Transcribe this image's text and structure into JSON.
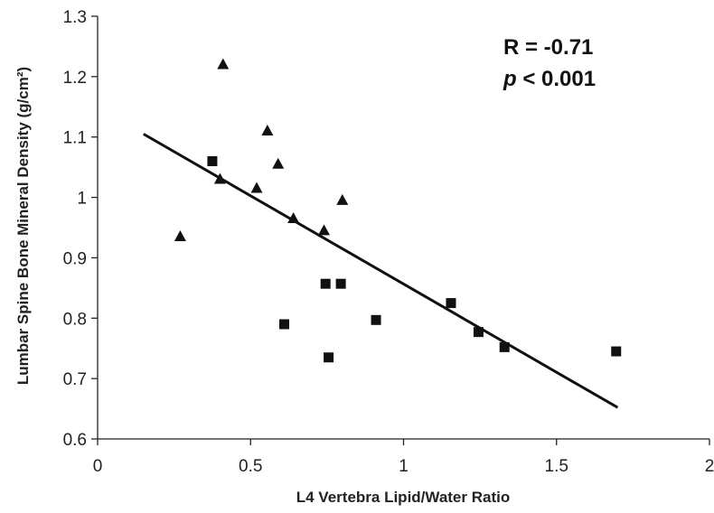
{
  "chart_data": {
    "type": "scatter",
    "title": "",
    "xlabel": "L4 Vertebra Lipid/Water Ratio",
    "ylabel": "Lumbar Spine Bone Mineral Density (g/cm²)",
    "xlim": [
      0,
      2
    ],
    "ylim": [
      0.6,
      1.3
    ],
    "x_ticks": [
      0,
      0.5,
      1,
      1.5,
      2
    ],
    "x_tick_labels": [
      "0",
      "0.5",
      "1",
      "1.5",
      "2"
    ],
    "y_ticks": [
      0.6,
      0.7,
      0.8,
      0.9,
      1.0,
      1.1,
      1.2,
      1.3
    ],
    "y_tick_labels": [
      "0.6",
      "0.7",
      "0.8",
      "0.9",
      "1",
      "1.1",
      "1.2",
      "1.3"
    ],
    "grid": false,
    "legend": "none",
    "series": [
      {
        "marker": "triangle",
        "color": "#111111",
        "points": [
          {
            "x": 0.27,
            "y": 0.935
          },
          {
            "x": 0.4,
            "y": 1.03
          },
          {
            "x": 0.41,
            "y": 1.22
          },
          {
            "x": 0.52,
            "y": 1.015
          },
          {
            "x": 0.555,
            "y": 1.11
          },
          {
            "x": 0.59,
            "y": 1.055
          },
          {
            "x": 0.64,
            "y": 0.965
          },
          {
            "x": 0.74,
            "y": 0.945
          },
          {
            "x": 0.8,
            "y": 0.995
          }
        ]
      },
      {
        "marker": "square",
        "color": "#111111",
        "points": [
          {
            "x": 0.375,
            "y": 1.06
          },
          {
            "x": 0.61,
            "y": 0.79
          },
          {
            "x": 0.745,
            "y": 0.857
          },
          {
            "x": 0.755,
            "y": 0.735
          },
          {
            "x": 0.795,
            "y": 0.857
          },
          {
            "x": 0.91,
            "y": 0.797
          },
          {
            "x": 1.155,
            "y": 0.825
          },
          {
            "x": 1.245,
            "y": 0.777
          },
          {
            "x": 1.33,
            "y": 0.752
          },
          {
            "x": 1.695,
            "y": 0.745
          }
        ]
      }
    ],
    "trendline": {
      "x": [
        0.15,
        1.7
      ],
      "y": [
        1.105,
        0.652
      ],
      "color": "#111111"
    },
    "annotations": {
      "r_label": "R = -0.71",
      "p_symbol": "p",
      "p_rest": " < 0.001"
    }
  }
}
